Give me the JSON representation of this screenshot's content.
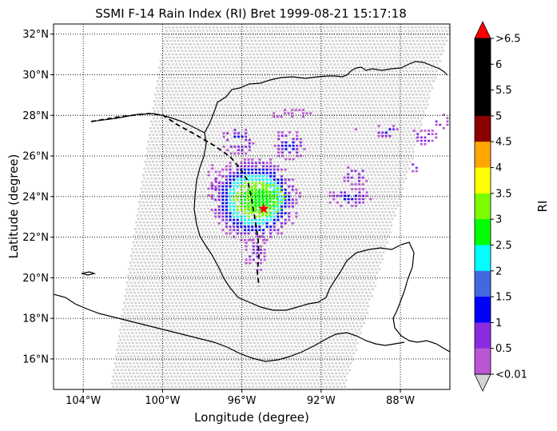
{
  "title": "SSMI F-14 Rain Index (RI) Bret 1999-08-21 15:17:18",
  "map": {
    "xlabel": "Longitude (degree)",
    "ylabel": "Latitude (degree)",
    "lon_range": [
      -105.5,
      -85.5
    ],
    "lat_range": [
      14.5,
      32.5
    ],
    "lon_ticks": [
      {
        "value": -104,
        "label": "104°W"
      },
      {
        "value": -100,
        "label": "100°W"
      },
      {
        "value": -96,
        "label": "96°W"
      },
      {
        "value": -92,
        "label": "92°W"
      },
      {
        "value": -88,
        "label": "88°W"
      }
    ],
    "lat_ticks": [
      {
        "value": 32,
        "label": "32°N"
      },
      {
        "value": 30,
        "label": "30°N"
      },
      {
        "value": 28,
        "label": "28°N"
      },
      {
        "value": 26,
        "label": "26°N"
      },
      {
        "value": 24,
        "label": "24°N"
      },
      {
        "value": 22,
        "label": "22°N"
      },
      {
        "value": 20,
        "label": "20°N"
      },
      {
        "value": 18,
        "label": "18°N"
      },
      {
        "value": 16,
        "label": "16°N"
      }
    ],
    "gridlines": "dotted",
    "storm_center": {
      "lon": -94.9,
      "lat": 23.4,
      "marker": "red star"
    },
    "track_style": "dashed black"
  },
  "colorbar": {
    "label": "RI",
    "tick_labels": [
      ">6.5",
      "6",
      "5.5",
      "5",
      "4.5",
      "4",
      "3.5",
      "3",
      "2.5",
      "2",
      "1.5",
      "1",
      "0.5",
      "<0.01"
    ],
    "colors_top_to_bottom": [
      "#000000",
      "#000000",
      "#000000",
      "#8b0000",
      "#ffa500",
      "#ffff00",
      "#7cfc00",
      "#00ff00",
      "#00ffff",
      "#4169e1",
      "#0000ff",
      "#8a2be2",
      "#ba55d3"
    ],
    "over_color": "#ff0000",
    "under_color": "#d3d3d3"
  },
  "colors": {
    "no_rain": "#d3d3d3",
    "coast": "#000000",
    "star": "#ff0000"
  }
}
